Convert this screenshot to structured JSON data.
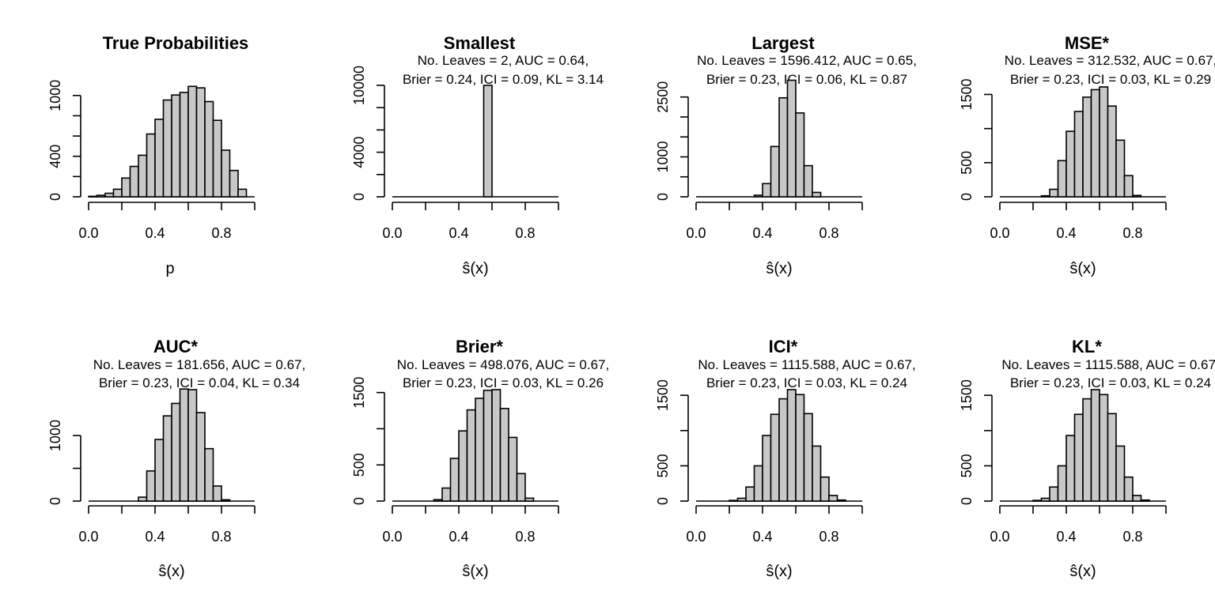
{
  "chart_data": [
    {
      "type": "bar",
      "title": "True Probabilities",
      "subtitle": [],
      "xlabel": "p",
      "x_ticks": [
        "0.0",
        "0.4",
        "0.8"
      ],
      "y_ticks": [
        "0",
        "400",
        "1000"
      ],
      "y_tick_values": [
        0,
        400,
        1000
      ],
      "xlim": [
        0,
        1
      ],
      "ylim": [
        0,
        1100
      ],
      "bin_width": 0.05,
      "bins_start": [
        0.0,
        0.05,
        0.1,
        0.15,
        0.2,
        0.25,
        0.3,
        0.35,
        0.4,
        0.45,
        0.5,
        0.55,
        0.6,
        0.65,
        0.7,
        0.75,
        0.8,
        0.85,
        0.9
      ],
      "values": [
        5,
        15,
        35,
        75,
        185,
        300,
        410,
        620,
        765,
        955,
        1005,
        1030,
        1090,
        1075,
        940,
        755,
        460,
        260,
        75
      ]
    },
    {
      "type": "bar",
      "title": "Smallest",
      "subtitle": [
        "No. Leaves = 2, AUC = 0.64,",
        "Brier = 0.24, ICI = 0.09, KL = 3.14"
      ],
      "xlabel": "ŝ(x)",
      "x_ticks": [
        "0.0",
        "0.4",
        "0.8"
      ],
      "y_ticks": [
        "0",
        "4000",
        "10000"
      ],
      "y_tick_values": [
        0,
        4000,
        10000
      ],
      "xlim": [
        0,
        1
      ],
      "ylim": [
        0,
        10000
      ],
      "bin_width": 0.05,
      "bins_start": [
        0.55
      ],
      "values": [
        10000
      ]
    },
    {
      "type": "bar",
      "title": "Largest",
      "subtitle": [
        "No. Leaves = 1596.412, AUC = 0.65,",
        "Brier = 0.23, ICI = 0.06, KL = 0.87"
      ],
      "xlabel": "ŝ(x)",
      "x_ticks": [
        "0.0",
        "0.4",
        "0.8"
      ],
      "y_ticks": [
        "0",
        "1000",
        "2500"
      ],
      "y_tick_values": [
        0,
        1000,
        2500
      ],
      "xlim": [
        0,
        1
      ],
      "ylim": [
        0,
        2950
      ],
      "bin_width": 0.05,
      "bins_start": [
        0.35,
        0.4,
        0.45,
        0.5,
        0.55,
        0.6,
        0.65,
        0.7
      ],
      "values": [
        40,
        330,
        1260,
        2480,
        2920,
        2100,
        780,
        110
      ]
    },
    {
      "type": "bar",
      "title": "MSE*",
      "subtitle": [
        "No. Leaves = 312.532, AUC = 0.67,",
        "Brier = 0.23, ICI = 0.03, KL = 0.29"
      ],
      "xlabel": "ŝ(x)",
      "x_ticks": [
        "0.0",
        "0.4",
        "0.8"
      ],
      "y_ticks": [
        "0",
        "500",
        "1500"
      ],
      "y_tick_values": [
        0,
        500,
        1500
      ],
      "xlim": [
        0,
        1
      ],
      "ylim": [
        0,
        1610
      ],
      "bin_width": 0.05,
      "bins_start": [
        0.25,
        0.3,
        0.35,
        0.4,
        0.45,
        0.5,
        0.55,
        0.6,
        0.65,
        0.7,
        0.75,
        0.8
      ],
      "values": [
        15,
        110,
        530,
        960,
        1250,
        1460,
        1570,
        1610,
        1330,
        830,
        310,
        20
      ]
    },
    {
      "type": "bar",
      "title": "AUC*",
      "subtitle": [
        "No. Leaves = 181.656, AUC = 0.67,",
        "Brier = 0.23, ICI = 0.04, KL = 0.34"
      ],
      "xlabel": "ŝ(x)",
      "x_ticks": [
        "0.0",
        "0.4",
        "0.8"
      ],
      "y_ticks": [
        "0",
        "1000"
      ],
      "y_tick_values": [
        0,
        1000
      ],
      "xlim": [
        0,
        1
      ],
      "ylim": [
        0,
        1700
      ],
      "bin_width": 0.05,
      "bins_start": [
        0.3,
        0.35,
        0.4,
        0.45,
        0.5,
        0.55,
        0.6,
        0.65,
        0.7,
        0.75,
        0.8
      ],
      "values": [
        60,
        460,
        940,
        1300,
        1490,
        1710,
        1700,
        1350,
        800,
        230,
        20
      ]
    },
    {
      "type": "bar",
      "title": "Brier*",
      "subtitle": [
        "No. Leaves = 498.076, AUC = 0.67,",
        "Brier = 0.23, ICI = 0.03, KL = 0.26"
      ],
      "xlabel": "ŝ(x)",
      "x_ticks": [
        "0.0",
        "0.4",
        "0.8"
      ],
      "y_ticks": [
        "0",
        "500",
        "1500"
      ],
      "y_tick_values": [
        0,
        500,
        1500
      ],
      "xlim": [
        0,
        1
      ],
      "ylim": [
        0,
        1540
      ],
      "bin_width": 0.05,
      "bins_start": [
        0.25,
        0.3,
        0.35,
        0.4,
        0.45,
        0.5,
        0.55,
        0.6,
        0.65,
        0.7,
        0.75,
        0.8
      ],
      "values": [
        20,
        180,
        590,
        970,
        1260,
        1420,
        1530,
        1540,
        1280,
        880,
        380,
        40
      ]
    },
    {
      "type": "bar",
      "title": "ICI*",
      "subtitle": [
        "No. Leaves = 1115.588, AUC = 0.67,",
        "Brier = 0.23, ICI = 0.03, KL = 0.24"
      ],
      "xlabel": "ŝ(x)",
      "x_ticks": [
        "0.0",
        "0.4",
        "0.8"
      ],
      "y_ticks": [
        "0",
        "500",
        "1500"
      ],
      "y_tick_values": [
        0,
        500,
        1500
      ],
      "xlim": [
        0,
        1
      ],
      "ylim": [
        0,
        1580
      ],
      "bin_width": 0.05,
      "bins_start": [
        0.2,
        0.25,
        0.3,
        0.35,
        0.4,
        0.45,
        0.5,
        0.55,
        0.6,
        0.65,
        0.7,
        0.75,
        0.8,
        0.85
      ],
      "values": [
        10,
        40,
        200,
        500,
        930,
        1230,
        1450,
        1580,
        1510,
        1240,
        780,
        340,
        80,
        15
      ]
    },
    {
      "type": "bar",
      "title": "KL*",
      "subtitle": [
        "No. Leaves = 1115.588, AUC = 0.67,",
        "Brier = 0.23, ICI = 0.03, KL = 0.24"
      ],
      "xlabel": "ŝ(x)",
      "x_ticks": [
        "0.0",
        "0.4",
        "0.8"
      ],
      "y_ticks": [
        "0",
        "500",
        "1500"
      ],
      "y_tick_values": [
        0,
        500,
        1500
      ],
      "xlim": [
        0,
        1
      ],
      "ylim": [
        0,
        1580
      ],
      "bin_width": 0.05,
      "bins_start": [
        0.2,
        0.25,
        0.3,
        0.35,
        0.4,
        0.45,
        0.5,
        0.55,
        0.6,
        0.65,
        0.7,
        0.75,
        0.8,
        0.85
      ],
      "values": [
        10,
        40,
        200,
        500,
        930,
        1230,
        1450,
        1580,
        1510,
        1240,
        780,
        340,
        80,
        15
      ]
    }
  ]
}
